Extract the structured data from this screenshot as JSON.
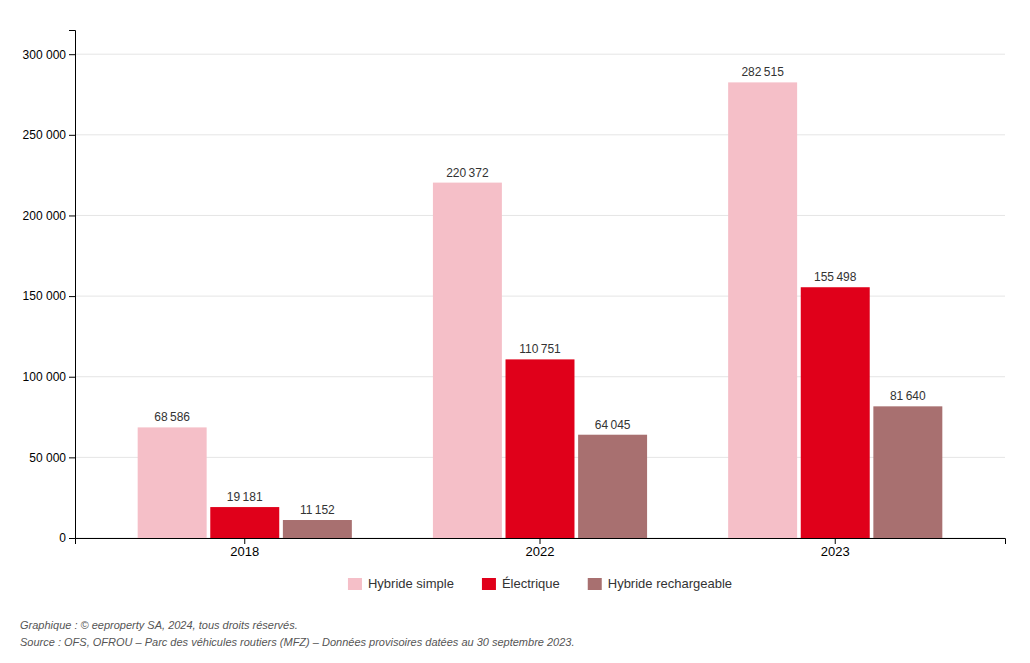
{
  "chart_data": {
    "type": "bar",
    "categories": [
      "2018",
      "2022",
      "2023"
    ],
    "series": [
      {
        "name": "Hybride simple",
        "color": "#f5bfc8",
        "values": [
          68586,
          220372,
          282515
        ],
        "value_labels": [
          "68 586",
          "220 372",
          "282 515"
        ]
      },
      {
        "name": "Électrique",
        "color": "#e0001a",
        "values": [
          19181,
          110751,
          155498
        ],
        "value_labels": [
          "19 181",
          "110 751",
          "155 498"
        ]
      },
      {
        "name": "Hybride rechargeable",
        "color": "#a87070",
        "values": [
          11152,
          64045,
          81640
        ],
        "value_labels": [
          "11 152",
          "64 045",
          "81 640"
        ]
      }
    ],
    "ylim": [
      0,
      315000
    ],
    "yticks": [
      0,
      {
        "value": 50000,
        "label": "50 000"
      },
      {
        "value": 100000,
        "label": "100 000"
      },
      {
        "value": 150000,
        "label": "150 000"
      },
      {
        "value": 200000,
        "label": "200 000"
      },
      {
        "value": 250000,
        "label": "250 000"
      },
      {
        "value": 300000,
        "label": "300 000"
      }
    ],
    "grid": true,
    "legend": "bottom",
    "data_labels": true,
    "annotations": [
      "Graphique : © eeproperty SA, 2024, tous droits réservés.",
      "Source : OFS, OFROU – Parc des véhicules routiers (MFZ) – Données provisoires datées au 30 septembre 2023."
    ]
  }
}
